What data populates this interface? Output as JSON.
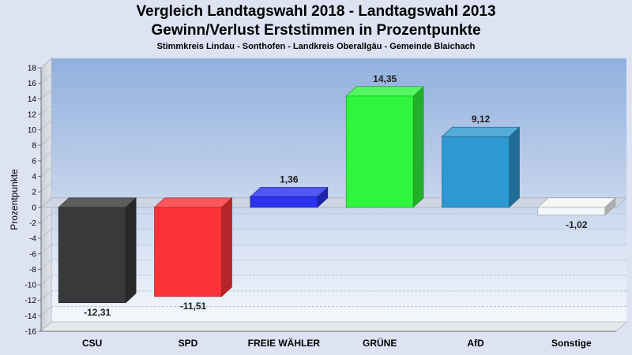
{
  "chart_data": {
    "type": "bar",
    "title": "Vergleich Landtagswahl 2018 - Landtagswahl 2013",
    "subtitle_line": "Gewinn/Verlust Erststimmen in Prozentpunkte",
    "subtitle": "Stimmkreis Lindau - Sonthofen - Landkreis Oberallgäu - Gemeinde Blaichach",
    "ylabel": "Prozentpunkte",
    "xlabel": "",
    "ylim": [
      -16,
      18
    ],
    "yticks": [
      18,
      16,
      14,
      12,
      10,
      8,
      6,
      4,
      2,
      0,
      -2,
      -4,
      -6,
      -8,
      -10,
      -12,
      -14,
      -16
    ],
    "grid": true,
    "categories": [
      "CSU",
      "SPD",
      "FREIE WÄHLER",
      "GRÜNE",
      "AfD",
      "Sonstige"
    ],
    "values": [
      -12.31,
      -11.51,
      1.36,
      14.35,
      9.12,
      -1.02
    ],
    "value_labels": [
      "-12,31",
      "-11,51",
      "1,36",
      "14,35",
      "9,12",
      "-1,02"
    ],
    "colors": [
      "#38393b",
      "#fb3237",
      "#2b32f0",
      "#2ff53c",
      "#2e98d2",
      "#f4f5f8"
    ]
  }
}
